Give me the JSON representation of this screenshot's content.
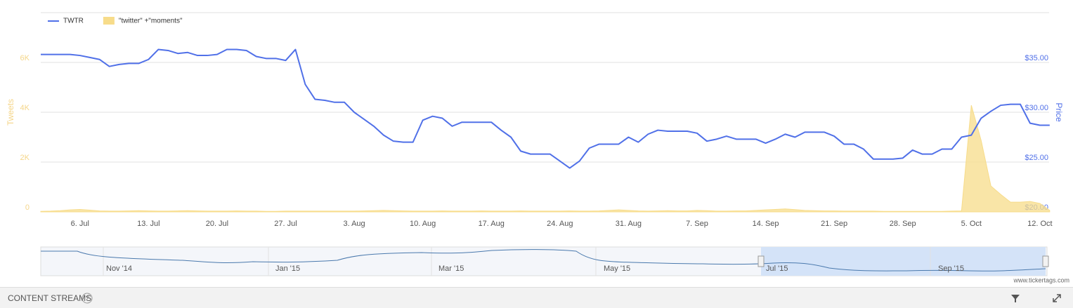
{
  "chart_data": {
    "type": "line",
    "ylabel": "Tweets",
    "y2label": "Price",
    "categories": [
      null,
      null,
      null,
      null,
      "6. Jul",
      null,
      null,
      null,
      null,
      null,
      null,
      "13. Jul",
      null,
      null,
      null,
      null,
      null,
      null,
      "20. Jul",
      null,
      null,
      null,
      null,
      null,
      null,
      "27. Jul",
      null,
      null,
      null,
      null,
      null,
      null,
      "3. Aug",
      null,
      null,
      null,
      null,
      null,
      null,
      "10. Aug",
      null,
      null,
      null,
      null,
      null,
      null,
      "17. Aug",
      null,
      null,
      null,
      null,
      null,
      null,
      "24. Aug",
      null,
      null,
      null,
      null,
      null,
      null,
      "31. Aug",
      null,
      null,
      null,
      null,
      null,
      null,
      "7. Sep",
      null,
      null,
      null,
      null,
      null,
      null,
      "14. Sep",
      null,
      null,
      null,
      null,
      null,
      null,
      "21. Sep",
      null,
      null,
      null,
      null,
      null,
      null,
      "28. Sep",
      null,
      null,
      null,
      null,
      null,
      null,
      "5. Oct",
      null,
      null,
      null,
      null,
      null,
      null,
      "12. Oct",
      null
    ],
    "series": [
      {
        "name": "TWTR",
        "type": "line",
        "axis": "y2",
        "color": "#5070e8",
        "values": [
          35.8,
          35.8,
          35.8,
          35.8,
          35.7,
          35.5,
          35.3,
          34.6,
          34.8,
          34.9,
          34.9,
          35.3,
          36.3,
          36.2,
          35.9,
          36.0,
          35.7,
          35.7,
          35.8,
          36.3,
          36.3,
          36.2,
          35.6,
          35.4,
          35.4,
          35.2,
          36.3,
          32.8,
          31.3,
          31.2,
          31.0,
          31.0,
          30.0,
          29.3,
          28.6,
          27.7,
          27.1,
          27.0,
          27.0,
          29.2,
          29.6,
          29.4,
          28.6,
          29.0,
          29.0,
          29.0,
          29.0,
          28.2,
          27.5,
          26.1,
          25.8,
          25.8,
          25.8,
          25.1,
          24.4,
          25.1,
          26.4,
          26.8,
          26.8,
          26.8,
          27.5,
          27.0,
          27.8,
          28.2,
          28.1,
          28.1,
          28.1,
          27.9,
          27.1,
          27.3,
          27.6,
          27.3,
          27.3,
          27.3,
          26.9,
          27.3,
          27.8,
          27.5,
          28.0,
          28.0,
          28.0,
          27.6,
          26.8,
          26.8,
          26.3,
          25.3,
          25.3,
          25.3,
          25.4,
          26.2,
          25.8,
          25.8,
          26.3,
          26.3,
          27.5,
          27.7,
          29.4,
          30.1,
          30.7,
          30.8,
          30.8,
          28.9,
          28.7,
          28.7
        ]
      },
      {
        "name": "\"twitter\" +\"moments\"",
        "type": "area",
        "color": "#f7dc8a",
        "values": [
          20,
          30,
          50,
          80,
          100,
          70,
          40,
          30,
          30,
          40,
          50,
          40,
          30,
          30,
          40,
          50,
          40,
          30,
          30,
          30,
          40,
          30,
          30,
          20,
          20,
          30,
          30,
          30,
          30,
          30,
          30,
          30,
          30,
          40,
          50,
          60,
          50,
          40,
          30,
          30,
          30,
          40,
          30,
          30,
          30,
          40,
          30,
          30,
          30,
          40,
          30,
          30,
          30,
          30,
          40,
          30,
          30,
          40,
          60,
          80,
          60,
          40,
          30,
          40,
          50,
          40,
          40,
          60,
          50,
          30,
          30,
          40,
          40,
          60,
          80,
          100,
          120,
          90,
          60,
          50,
          40,
          40,
          30,
          30,
          30,
          30,
          20,
          20,
          20,
          20,
          20,
          20,
          20,
          30,
          40,
          4280,
          2870,
          1040,
          700,
          390,
          390,
          420,
          340,
          60
        ]
      }
    ],
    "ylim": [
      0,
      8000
    ],
    "yticks": [
      0,
      {
        "value": 2000,
        "label": "2K"
      },
      {
        "value": 4000,
        "label": "4K"
      },
      {
        "value": 6000,
        "label": "6K"
      }
    ],
    "y2lim": [
      20,
      40
    ],
    "y2ticks": [
      {
        "value": 20,
        "label": "$20.00"
      },
      {
        "value": 25,
        "label": "$25.00"
      },
      {
        "value": 30,
        "label": "$30.00"
      },
      {
        "value": 35,
        "label": "$35.00"
      }
    ],
    "grid": true,
    "legend": "top-left"
  },
  "navigator": {
    "labels": [
      "Nov '14",
      "Jan '15",
      "Mar '15",
      "May '15",
      "Jul '15",
      "Sep '15"
    ]
  },
  "footer": {
    "section": "CONTENT STREAMS",
    "help": "?",
    "credit": "www.tickertags.com"
  }
}
